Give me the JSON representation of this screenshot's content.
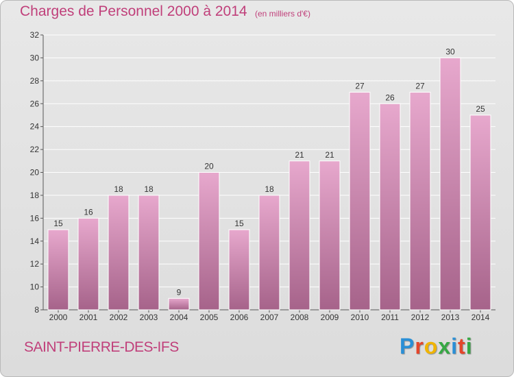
{
  "header": {
    "title": "Charges de Personnel 2000 à 2014",
    "unit": "(en milliers d'€)"
  },
  "footer": {
    "commune": "SAINT-PIERRE-DES-IFS",
    "logo_letters": [
      "P",
      "r",
      "o",
      "x",
      "i",
      "t",
      "i"
    ],
    "logo_colors": [
      "#2a8fd6",
      "#e4462b",
      "#f0b400",
      "#36a844",
      "#2a8fd6",
      "#e4462b",
      "#36a844"
    ]
  },
  "colors": {
    "title": "#c03f7a",
    "bar_top": "#e7a8cd",
    "bar_bottom": "#a6638a",
    "gridline": "#ffffff"
  },
  "chart_data": {
    "type": "bar",
    "title": "Charges de Personnel 2000 à 2014",
    "subtitle": "(en milliers d'€)",
    "categories": [
      "2000",
      "2001",
      "2002",
      "2003",
      "2004",
      "2005",
      "2006",
      "2007",
      "2008",
      "2009",
      "2010",
      "2011",
      "2012",
      "2013",
      "2014"
    ],
    "values": [
      15,
      16,
      18,
      18,
      9,
      20,
      15,
      18,
      21,
      21,
      27,
      26,
      27,
      30,
      25
    ],
    "ylim": [
      8,
      32
    ],
    "yticks": [
      8,
      10,
      12,
      14,
      16,
      18,
      20,
      22,
      24,
      26,
      28,
      30,
      32
    ],
    "grid": true,
    "data_labels": true
  }
}
